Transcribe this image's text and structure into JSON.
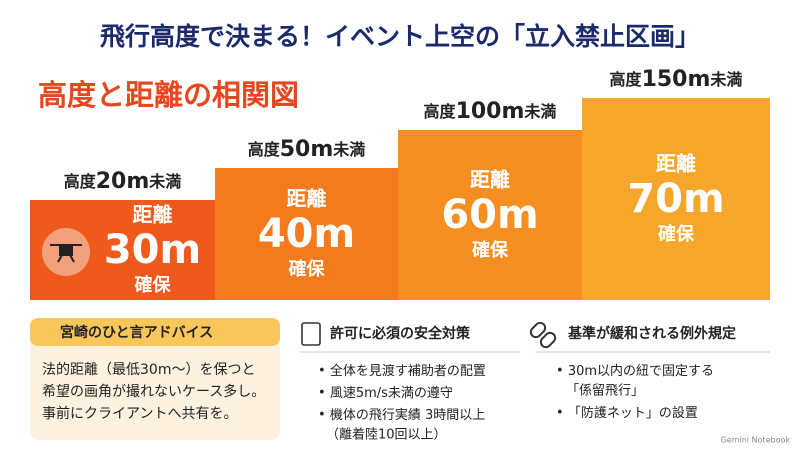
{
  "header": {
    "title": "飛行高度で決まる！イベント上空の「立入禁止区画」",
    "subtitle": "高度と距離の相関図"
  },
  "steps": [
    {
      "altitude_prefix": "高度",
      "altitude": "20m",
      "altitude_suffix": "未満",
      "distance_label": "距離",
      "distance": "30m",
      "distance_suffix": "確保"
    },
    {
      "altitude_prefix": "高度",
      "altitude": "50m",
      "altitude_suffix": "未満",
      "distance_label": "距離",
      "distance": "40m",
      "distance_suffix": "確保"
    },
    {
      "altitude_prefix": "高度",
      "altitude": "100m",
      "altitude_suffix": "未満",
      "distance_label": "距離",
      "distance": "60m",
      "distance_suffix": "確保"
    },
    {
      "altitude_prefix": "高度",
      "altitude": "150m",
      "altitude_suffix": "未満",
      "distance_label": "距離",
      "distance": "70m",
      "distance_suffix": "確保"
    }
  ],
  "panels": [
    {
      "title": "宮崎のひと言アドバイス",
      "lines": [
        "法的距離（最低30m〜）を保つと",
        "希望の画角が撮れないケース多し。",
        "事前にクライアントへ共有を。"
      ]
    },
    {
      "title": "許可に必須の安全対策",
      "items": [
        "全体を見渡す補助者の配置",
        "風速5m/s未満の遵守",
        "機体の飛行実績 3時間以上",
        "（離着陸10回以上）"
      ]
    },
    {
      "title": "基準が緩和される例外規定",
      "items": [
        "30m以内の紐で固定する",
        "「係留飛行」",
        "「防護ネット」の設置"
      ]
    }
  ],
  "footer": "Gemini Notebook"
}
